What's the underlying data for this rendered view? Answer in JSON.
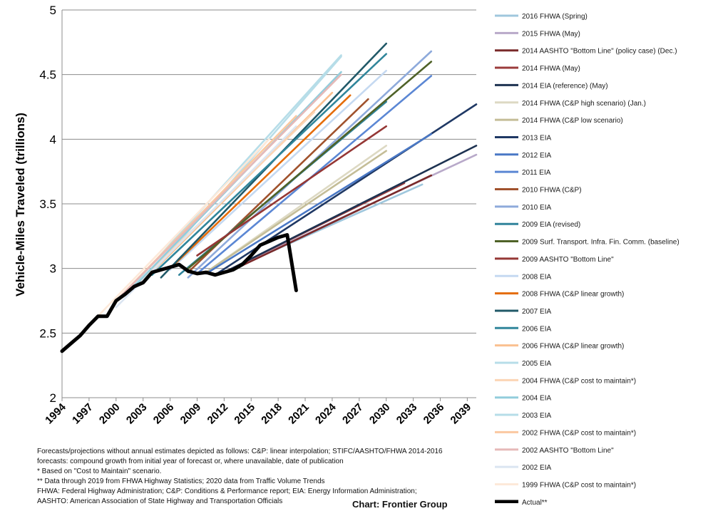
{
  "chart_data": {
    "type": "line",
    "title": "",
    "ylabel": "Vehicle-Miles Traveled (trillions)",
    "xlabel": "",
    "ylim": [
      2,
      5
    ],
    "yticks": [
      2,
      2.5,
      3,
      3.5,
      4,
      4.5,
      5
    ],
    "ytick_labels": [
      "2",
      "2.5",
      "3",
      "3.5",
      "4",
      "4.5",
      "5"
    ],
    "xlim": [
      1994,
      2040
    ],
    "xticks": [
      1994,
      1997,
      2000,
      2003,
      2006,
      2009,
      2012,
      2015,
      2018,
      2021,
      2024,
      2027,
      2030,
      2033,
      2036,
      2039
    ],
    "xtick_labels": [
      "1994",
      "1997",
      "2000",
      "2003",
      "2006",
      "2009",
      "2012",
      "2015",
      "2018",
      "2021",
      "2024",
      "2027",
      "2030",
      "2033",
      "2036",
      "2039"
    ],
    "grid": "horizontal",
    "legend_position": "right",
    "series": [
      {
        "name": "2016 FHWA (Spring)",
        "color": "#9fc7dd",
        "x": [
          2014,
          2034
        ],
        "y": [
          3.03,
          3.65
        ]
      },
      {
        "name": "2015 FHWA (May)",
        "color": "#b8a9c9",
        "x": [
          2013,
          2040
        ],
        "y": [
          3.0,
          3.88
        ]
      },
      {
        "name": "2014 AASHTO \"Bottom Line\" (policy case) (Dec.)",
        "color": "#7a2a2a",
        "x": [
          2013,
          2035
        ],
        "y": [
          2.99,
          3.72
        ]
      },
      {
        "name": "2014 FHWA (May)",
        "color": "#9b3b3b",
        "x": [
          2012,
          2032
        ],
        "y": [
          2.97,
          3.66
        ]
      },
      {
        "name": "2014 EIA (reference) (May)",
        "color": "#1d3251",
        "x": [
          2012,
          2040
        ],
        "y": [
          2.97,
          3.95
        ]
      },
      {
        "name": "2014 FHWA (C&P high scenario) (Jan.)",
        "color": "#ddd9c3",
        "x": [
          2010,
          2030
        ],
        "y": [
          2.97,
          3.95
        ]
      },
      {
        "name": "2014 FHWA (C&P low scenario)",
        "color": "#c4bd97",
        "x": [
          2010,
          2030
        ],
        "y": [
          2.97,
          3.91
        ]
      },
      {
        "name": "2013 EIA",
        "color": "#1f3864",
        "x": [
          2011,
          2040
        ],
        "y": [
          2.95,
          4.27
        ]
      },
      {
        "name": "2012 EIA",
        "color": "#4a78c5",
        "x": [
          2010,
          2035
        ],
        "y": [
          2.96,
          4.04
        ]
      },
      {
        "name": "2011 EIA",
        "color": "#5b87d4",
        "x": [
          2009,
          2035
        ],
        "y": [
          2.96,
          4.49
        ]
      },
      {
        "name": "2010 FHWA (C&P)",
        "color": "#a0522d",
        "x": [
          2008,
          2028
        ],
        "y": [
          2.97,
          4.31
        ]
      },
      {
        "name": "2010 EIA",
        "color": "#8eaadb",
        "x": [
          2008,
          2035
        ],
        "y": [
          2.93,
          4.68
        ]
      },
      {
        "name": "2009 EIA (revised)",
        "color": "#31849b",
        "x": [
          2007,
          2030
        ],
        "y": [
          2.95,
          4.29
        ]
      },
      {
        "name": "2009 Surf. Transport. Infra. Fin. Comm. (baseline)",
        "color": "#4f6228",
        "x": [
          2008,
          2035
        ],
        "y": [
          3.0,
          4.6
        ]
      },
      {
        "name": "2009 AASHTO \"Bottom Line\"",
        "color": "#953735",
        "x": [
          2009,
          2030
        ],
        "y": [
          3.1,
          4.1
        ]
      },
      {
        "name": "2008 EIA",
        "color": "#c5d9f1",
        "x": [
          2006,
          2030
        ],
        "y": [
          2.99,
          4.53
        ]
      },
      {
        "name": "2008 FHWA (C&P linear growth)",
        "color": "#e46c0a",
        "x": [
          2006,
          2026
        ],
        "y": [
          3.0,
          4.34
        ]
      },
      {
        "name": "2007 EIA",
        "color": "#215968",
        "x": [
          2005,
          2030
        ],
        "y": [
          2.93,
          4.74
        ]
      },
      {
        "name": "2006 EIA",
        "color": "#31869b",
        "x": [
          2004,
          2030
        ],
        "y": [
          2.95,
          4.66
        ]
      },
      {
        "name": "2006 FHWA (C&P linear growth)",
        "color": "#fac090",
        "x": [
          2004,
          2024
        ],
        "y": [
          2.97,
          4.36
        ]
      },
      {
        "name": "2005 EIA",
        "color": "#b7dde8",
        "x": [
          2003,
          2025
        ],
        "y": [
          2.89,
          4.64
        ]
      },
      {
        "name": "2004 FHWA (C&P cost to maintain*)",
        "color": "#fcd5b4",
        "x": [
          2002,
          2022
        ],
        "y": [
          2.86,
          4.21
        ]
      },
      {
        "name": "2004 EIA",
        "color": "#92cddc",
        "x": [
          2002,
          2025
        ],
        "y": [
          2.86,
          4.52
        ]
      },
      {
        "name": "2003 EIA",
        "color": "#b6dde8",
        "x": [
          2001,
          2025
        ],
        "y": [
          2.8,
          4.65
        ]
      },
      {
        "name": "2002 FHWA (C&P cost to maintain*)",
        "color": "#fbc8a0",
        "x": [
          2000,
          2020
        ],
        "y": [
          2.75,
          4.18
        ]
      },
      {
        "name": "2002 AASHTO \"Bottom Line\"",
        "color": "#e6b9b8",
        "x": [
          2000,
          2025
        ],
        "y": [
          2.75,
          4.5
        ]
      },
      {
        "name": "2002 EIA",
        "color": "#dbe5f1",
        "x": [
          2000,
          2020
        ],
        "y": [
          2.7,
          4.1
        ]
      },
      {
        "name": "1999 FHWA (C&P cost to maintain*)",
        "color": "#fde9d9",
        "x": [
          1997,
          2017
        ],
        "y": [
          2.56,
          4.0
        ]
      },
      {
        "name": "Actual**",
        "color": "#000000",
        "x": [
          1994,
          1995,
          1996,
          1997,
          1998,
          1999,
          2000,
          2001,
          2002,
          2003,
          2004,
          2005,
          2006,
          2007,
          2008,
          2009,
          2010,
          2011,
          2012,
          2013,
          2014,
          2015,
          2016,
          2017,
          2018,
          2019,
          2020
        ],
        "y": [
          2.36,
          2.42,
          2.48,
          2.56,
          2.63,
          2.63,
          2.75,
          2.8,
          2.86,
          2.89,
          2.97,
          2.99,
          3.01,
          3.03,
          2.98,
          2.96,
          2.97,
          2.95,
          2.97,
          2.99,
          3.03,
          3.1,
          3.18,
          3.21,
          3.24,
          3.26,
          2.83
        ]
      }
    ]
  },
  "footnotes": [
    "Forecasts/projections without annual estimates depicted as follows: C&P: linear interpolation;  STIFC/AASHTO/FHWA 2014-2016",
    "forecasts: compound growth from initial year of forecast or, where unavailable, date of publication",
    "* Based on \"Cost to Maintain\" scenario.",
    "** Data through 2019 from FHWA Highway Statistics; 2020 data from Traffic Volume Trends",
    "FHWA: Federal Highway Administration; C&P: Conditions & Performance report; EIA: Energy Information Administration;",
    "AASHTO: American Association of State Highway and Transportation Officials"
  ],
  "credit": "Chart: Frontier Group"
}
